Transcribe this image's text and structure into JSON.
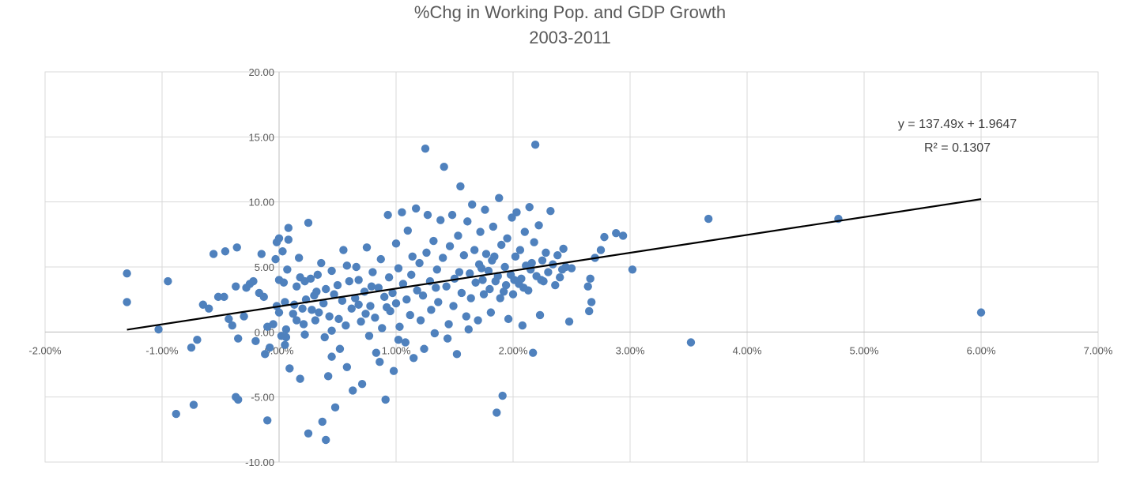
{
  "chart_data": {
    "type": "scatter",
    "title": "%Chg in Working Pop. and GDP Growth",
    "subtitle": "2003-2011",
    "xlabel": "",
    "ylabel": "",
    "xlim": [
      -0.02,
      0.07
    ],
    "ylim": [
      -10,
      20
    ],
    "x_ticks": [
      -0.02,
      -0.01,
      0.0,
      0.01,
      0.02,
      0.03,
      0.04,
      0.05,
      0.06,
      0.07
    ],
    "x_tick_labels": [
      "-2.00%",
      "-1.00%",
      "0.00%",
      "1.00%",
      "2.00%",
      "3.00%",
      "4.00%",
      "5.00%",
      "6.00%",
      "7.00%"
    ],
    "y_ticks": [
      -10,
      -5,
      0,
      5,
      10,
      15,
      20
    ],
    "y_tick_labels": [
      "-10.00",
      "-5.00",
      "0.00",
      "5.00",
      "10.00",
      "15.00",
      "20.00"
    ],
    "grid": true,
    "legend": "none",
    "marker_color": "#4f81bd",
    "trendline": {
      "slope": 137.49,
      "intercept": 1.9647,
      "x_range": [
        -0.013,
        0.06
      ],
      "equation_label": "y = 137.49x + 1.9647",
      "r2_label": "R² = 0.1307",
      "color": "#000000"
    },
    "series": [
      {
        "points": [
          [
            -0.013,
            4.5
          ],
          [
            -0.013,
            2.3
          ],
          [
            -0.0095,
            3.9
          ],
          [
            -0.0103,
            0.2
          ],
          [
            -0.0088,
            -6.3
          ],
          [
            -0.0073,
            -5.6
          ],
          [
            -0.0075,
            -1.2
          ],
          [
            -0.007,
            -0.6
          ],
          [
            -0.0065,
            2.1
          ],
          [
            -0.006,
            1.8
          ],
          [
            -0.0056,
            6.0
          ],
          [
            -0.0052,
            2.7
          ],
          [
            -0.0047,
            2.7
          ],
          [
            -0.0046,
            6.2
          ],
          [
            -0.0043,
            1.0
          ],
          [
            -0.004,
            0.5
          ],
          [
            -0.0037,
            3.5
          ],
          [
            -0.0036,
            6.5
          ],
          [
            -0.0037,
            -5.0
          ],
          [
            -0.0035,
            -5.2
          ],
          [
            -0.0035,
            -0.5
          ],
          [
            -0.003,
            1.2
          ],
          [
            -0.0028,
            3.4
          ],
          [
            -0.0025,
            3.7
          ],
          [
            -0.0022,
            3.9
          ],
          [
            -0.002,
            -0.7
          ],
          [
            -0.0017,
            3.0
          ],
          [
            -0.0015,
            6.0
          ],
          [
            -0.0013,
            2.7
          ],
          [
            -0.0012,
            -1.7
          ],
          [
            -0.001,
            -6.8
          ],
          [
            -0.001,
            0.4
          ],
          [
            -0.0008,
            -1.2
          ],
          [
            -0.0005,
            0.6
          ],
          [
            -0.0003,
            5.6
          ],
          [
            -0.0002,
            6.9
          ],
          [
            0.0,
            7.2
          ],
          [
            0.0,
            4.0
          ],
          [
            0.0,
            1.5
          ],
          [
            -0.0002,
            2.0
          ],
          [
            0.0002,
            -0.3
          ],
          [
            0.0003,
            6.2
          ],
          [
            0.0004,
            3.8
          ],
          [
            0.0005,
            2.3
          ],
          [
            0.0006,
            0.2
          ],
          [
            0.0007,
            4.8
          ],
          [
            0.0008,
            8.0
          ],
          [
            0.0008,
            7.1
          ],
          [
            0.0006,
            -0.4
          ],
          [
            0.0009,
            -2.8
          ],
          [
            0.0012,
            1.4
          ],
          [
            0.0013,
            2.1
          ],
          [
            0.0015,
            3.5
          ],
          [
            0.0017,
            5.7
          ],
          [
            0.0018,
            4.2
          ],
          [
            0.0018,
            -3.6
          ],
          [
            0.002,
            1.8
          ],
          [
            0.0021,
            0.6
          ],
          [
            0.0022,
            3.9
          ],
          [
            0.0023,
            2.5
          ],
          [
            0.0025,
            8.4
          ],
          [
            0.0025,
            -7.8
          ],
          [
            0.0027,
            4.1
          ],
          [
            0.0028,
            1.7
          ],
          [
            0.003,
            2.8
          ],
          [
            0.0031,
            0.9
          ],
          [
            0.0033,
            4.4
          ],
          [
            0.0034,
            1.5
          ],
          [
            0.0036,
            5.3
          ],
          [
            0.0037,
            -6.9
          ],
          [
            0.0038,
            2.2
          ],
          [
            0.0039,
            -0.4
          ],
          [
            0.004,
            3.3
          ],
          [
            0.004,
            -8.3
          ],
          [
            0.0042,
            -3.4
          ],
          [
            0.0043,
            1.2
          ],
          [
            0.0045,
            4.7
          ],
          [
            0.0045,
            0.1
          ],
          [
            0.0047,
            2.9
          ],
          [
            0.0048,
            -5.8
          ],
          [
            0.005,
            3.6
          ],
          [
            0.0051,
            1.0
          ],
          [
            0.0052,
            -1.3
          ],
          [
            0.0054,
            2.4
          ],
          [
            0.0055,
            6.3
          ],
          [
            0.0057,
            0.5
          ],
          [
            0.0058,
            -2.7
          ],
          [
            0.006,
            3.9
          ],
          [
            0.0062,
            1.8
          ],
          [
            0.0063,
            -4.5
          ],
          [
            0.0065,
            2.6
          ],
          [
            0.0066,
            5.0
          ],
          [
            0.0068,
            4.0
          ],
          [
            0.007,
            0.8
          ],
          [
            0.0071,
            -4.0
          ],
          [
            0.0073,
            3.1
          ],
          [
            0.0074,
            1.4
          ],
          [
            0.0075,
            6.5
          ],
          [
            0.0077,
            -0.3
          ],
          [
            0.0078,
            2.0
          ],
          [
            0.008,
            4.6
          ],
          [
            0.0082,
            1.1
          ],
          [
            0.0083,
            -1.6
          ],
          [
            0.0085,
            3.4
          ],
          [
            0.0087,
            5.6
          ],
          [
            0.0088,
            0.3
          ],
          [
            0.009,
            2.7
          ],
          [
            0.0091,
            -5.2
          ],
          [
            0.0093,
            9.0
          ],
          [
            0.0094,
            4.2
          ],
          [
            0.0095,
            1.6
          ],
          [
            0.0097,
            3.0
          ],
          [
            0.0098,
            -3.0
          ],
          [
            0.01,
            6.8
          ],
          [
            0.01,
            2.2
          ],
          [
            0.0102,
            4.9
          ],
          [
            0.0103,
            0.4
          ],
          [
            0.0105,
            9.2
          ],
          [
            0.0106,
            3.7
          ],
          [
            0.0108,
            -0.8
          ],
          [
            0.0109,
            2.5
          ],
          [
            0.011,
            7.8
          ],
          [
            0.0112,
            1.3
          ],
          [
            0.0113,
            4.4
          ],
          [
            0.0115,
            -2.0
          ],
          [
            0.0117,
            9.5
          ],
          [
            0.0118,
            3.2
          ],
          [
            0.012,
            5.3
          ],
          [
            0.0121,
            0.9
          ],
          [
            0.0123,
            2.8
          ],
          [
            0.0125,
            14.1
          ],
          [
            0.0126,
            6.1
          ],
          [
            0.0127,
            9.0
          ],
          [
            0.0129,
            3.9
          ],
          [
            0.013,
            1.7
          ],
          [
            0.0132,
            7.0
          ],
          [
            0.0133,
            -0.1
          ],
          [
            0.0135,
            4.8
          ],
          [
            0.0136,
            2.3
          ],
          [
            0.0138,
            8.6
          ],
          [
            0.014,
            5.7
          ],
          [
            0.0141,
            12.7
          ],
          [
            0.0143,
            3.5
          ],
          [
            0.0145,
            0.6
          ],
          [
            0.0146,
            6.6
          ],
          [
            0.0148,
            9.0
          ],
          [
            0.0149,
            2.0
          ],
          [
            0.015,
            4.1
          ],
          [
            0.0152,
            -1.7
          ],
          [
            0.0153,
            7.4
          ],
          [
            0.0155,
            11.2
          ],
          [
            0.0156,
            3.0
          ],
          [
            0.0158,
            5.9
          ],
          [
            0.016,
            1.2
          ],
          [
            0.0161,
            8.5
          ],
          [
            0.0163,
            4.5
          ],
          [
            0.0164,
            2.6
          ],
          [
            0.0165,
            9.8
          ],
          [
            0.0167,
            6.3
          ],
          [
            0.0168,
            3.8
          ],
          [
            0.017,
            0.9
          ],
          [
            0.0171,
            5.2
          ],
          [
            0.0172,
            7.7
          ],
          [
            0.0174,
            4.0
          ],
          [
            0.0175,
            2.9
          ],
          [
            0.0176,
            9.4
          ],
          [
            0.0177,
            6.0
          ],
          [
            0.0179,
            4.7
          ],
          [
            0.018,
            3.3
          ],
          [
            0.0181,
            1.5
          ],
          [
            0.0182,
            5.5
          ],
          [
            0.0183,
            8.1
          ],
          [
            0.0185,
            3.9
          ],
          [
            0.0186,
            -6.2
          ],
          [
            0.0187,
            4.3
          ],
          [
            0.0188,
            10.3
          ],
          [
            0.0189,
            2.6
          ],
          [
            0.019,
            6.7
          ],
          [
            0.0191,
            -4.9
          ],
          [
            0.0193,
            5.0
          ],
          [
            0.0194,
            3.6
          ],
          [
            0.0195,
            7.2
          ],
          [
            0.0196,
            1.0
          ],
          [
            0.0198,
            4.4
          ],
          [
            0.0199,
            8.8
          ],
          [
            0.02,
            2.9
          ],
          [
            0.0202,
            5.8
          ],
          [
            0.0203,
            9.2
          ],
          [
            0.0205,
            3.7
          ],
          [
            0.0206,
            6.3
          ],
          [
            0.0207,
            4.1
          ],
          [
            0.0208,
            0.5
          ],
          [
            0.021,
            7.7
          ],
          [
            0.0211,
            5.1
          ],
          [
            0.0213,
            3.2
          ],
          [
            0.0214,
            9.6
          ],
          [
            0.0215,
            4.8
          ],
          [
            0.0217,
            -1.6
          ],
          [
            0.0218,
            6.9
          ],
          [
            0.0219,
            14.4
          ],
          [
            0.022,
            4.3
          ],
          [
            0.0222,
            8.2
          ],
          [
            0.0223,
            1.3
          ],
          [
            0.0225,
            5.5
          ],
          [
            0.0226,
            3.9
          ],
          [
            0.0228,
            6.1
          ],
          [
            0.023,
            4.6
          ],
          [
            0.0232,
            9.3
          ],
          [
            0.0234,
            5.2
          ],
          [
            0.0236,
            3.6
          ],
          [
            0.0238,
            5.9
          ],
          [
            0.024,
            4.2
          ],
          [
            0.0243,
            6.4
          ],
          [
            0.0245,
            5.0
          ],
          [
            0.0248,
            0.8
          ],
          [
            0.025,
            4.9
          ],
          [
            0.0264,
            3.5
          ],
          [
            0.0265,
            1.6
          ],
          [
            0.0266,
            4.1
          ],
          [
            0.0267,
            2.3
          ],
          [
            0.027,
            5.7
          ],
          [
            0.0275,
            6.3
          ],
          [
            0.0278,
            7.3
          ],
          [
            0.0288,
            7.6
          ],
          [
            0.0294,
            7.4
          ],
          [
            0.0302,
            4.8
          ],
          [
            0.0352,
            -0.8
          ],
          [
            0.0367,
            8.7
          ],
          [
            0.0478,
            8.7
          ],
          [
            0.06,
            1.5
          ],
          [
            0.0005,
            -1.0
          ],
          [
            0.0015,
            0.9
          ],
          [
            0.0022,
            -0.2
          ],
          [
            0.0032,
            3.1
          ],
          [
            0.0045,
            -1.9
          ],
          [
            0.0058,
            5.1
          ],
          [
            0.0068,
            2.1
          ],
          [
            0.0079,
            3.5
          ],
          [
            0.0086,
            -2.3
          ],
          [
            0.0092,
            1.9
          ],
          [
            0.0102,
            -0.6
          ],
          [
            0.0114,
            5.8
          ],
          [
            0.0124,
            -1.3
          ],
          [
            0.0134,
            3.4
          ],
          [
            0.0144,
            -0.5
          ],
          [
            0.0154,
            4.6
          ],
          [
            0.0162,
            0.2
          ],
          [
            0.0173,
            4.9
          ],
          [
            0.0184,
            5.8
          ],
          [
            0.0192,
            3.1
          ],
          [
            0.0201,
            4.0
          ],
          [
            0.0209,
            3.4
          ],
          [
            0.0216,
            5.3
          ],
          [
            0.0224,
            4.0
          ],
          [
            0.0242,
            4.8
          ]
        ]
      }
    ]
  }
}
